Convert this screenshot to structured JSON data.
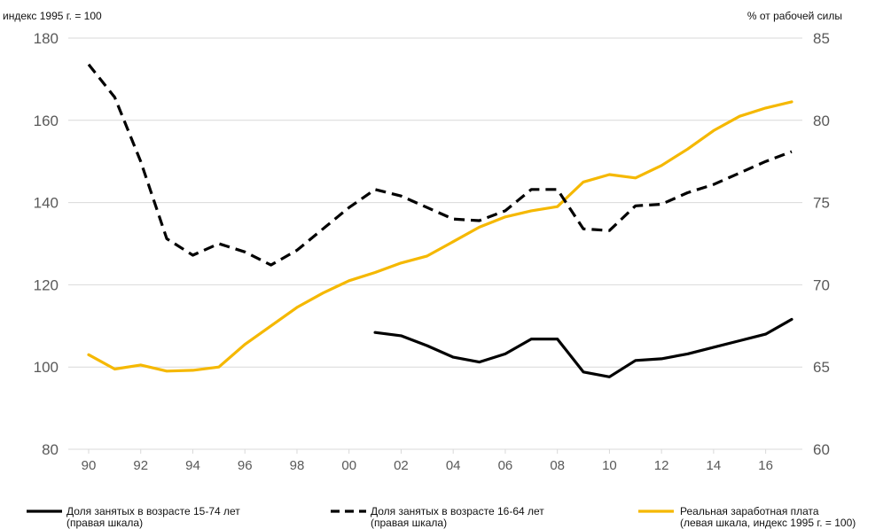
{
  "chart_data": {
    "type": "line",
    "left_axis_label": "индекс 1995 г. = 100",
    "right_axis_label": "% от рабочей силы",
    "y_left": {
      "min": 80,
      "max": 180,
      "ticks": [
        "80",
        "100",
        "120",
        "140",
        "160",
        "180"
      ]
    },
    "y_right": {
      "min": 60,
      "max": 85,
      "ticks": [
        "60",
        "65",
        "70",
        "75",
        "80",
        "85"
      ]
    },
    "x": {
      "min": 1990,
      "max": 2017,
      "ticks": [
        {
          "value": 1990,
          "label": "90"
        },
        {
          "value": 1992,
          "label": "92"
        },
        {
          "value": 1994,
          "label": "94"
        },
        {
          "value": 1996,
          "label": "96"
        },
        {
          "value": 1998,
          "label": "98"
        },
        {
          "value": 2000,
          "label": "00"
        },
        {
          "value": 2002,
          "label": "02"
        },
        {
          "value": 2004,
          "label": "04"
        },
        {
          "value": 2006,
          "label": "06"
        },
        {
          "value": 2008,
          "label": "08"
        },
        {
          "value": 2010,
          "label": "10"
        },
        {
          "value": 2012,
          "label": "12"
        },
        {
          "value": 2014,
          "label": "14"
        },
        {
          "value": 2016,
          "label": "16"
        }
      ]
    },
    "grid": "horizontal",
    "legend_position": "bottom",
    "series": [
      {
        "name": "Доля занятых в возрасте 15-74 лет",
        "note": "(правая шкала)",
        "axis": "right",
        "color": "#000000",
        "style": "solid",
        "x": [
          2001,
          2002,
          2003,
          2004,
          2005,
          2006,
          2007,
          2008,
          2009,
          2010,
          2011,
          2012,
          2013,
          2014,
          2015,
          2016,
          2017
        ],
        "values": [
          67.1,
          66.9,
          66.3,
          65.6,
          65.3,
          65.8,
          66.7,
          66.7,
          64.7,
          64.4,
          65.4,
          65.5,
          65.8,
          66.2,
          66.6,
          67.0,
          67.9
        ]
      },
      {
        "name": "Доля занятых в возрасте 16-64 лет",
        "note": "(правая шкала)",
        "axis": "right",
        "color": "#000000",
        "style": "dashed",
        "x": [
          1990,
          1991,
          1992,
          1993,
          1994,
          1995,
          1996,
          1997,
          1998,
          1999,
          2000,
          2001,
          2002,
          2003,
          2004,
          2005,
          2006,
          2007,
          2008,
          2009,
          2010,
          2011,
          2012,
          2013,
          2014,
          2015,
          2016,
          2017
        ],
        "values": [
          83.4,
          81.4,
          77.5,
          72.8,
          71.8,
          72.5,
          72.0,
          71.2,
          72.1,
          73.4,
          74.7,
          75.8,
          75.4,
          74.7,
          74.0,
          73.9,
          74.5,
          75.8,
          75.8,
          73.4,
          73.3,
          74.8,
          74.9,
          75.6,
          76.1,
          76.8,
          77.5,
          78.1
        ]
      },
      {
        "name": "Реальная заработная плата",
        "note": "(левая шкала, индекс 1995 г. = 100)",
        "axis": "left",
        "color": "#f5b800",
        "style": "solid",
        "x": [
          1990,
          1991,
          1992,
          1993,
          1994,
          1995,
          1996,
          1997,
          1998,
          1999,
          2000,
          2001,
          2002,
          2003,
          2004,
          2005,
          2006,
          2007,
          2008,
          2009,
          2010,
          2011,
          2012,
          2013,
          2014,
          2015,
          2016,
          2017
        ],
        "values": [
          103,
          99.5,
          100.5,
          99,
          99.2,
          100,
          105.5,
          110,
          114.5,
          118,
          121,
          123,
          125.3,
          127,
          130.5,
          134,
          136.5,
          138,
          139,
          145,
          146.8,
          146,
          149,
          153,
          157.5,
          161,
          163,
          164.5
        ]
      }
    ]
  }
}
